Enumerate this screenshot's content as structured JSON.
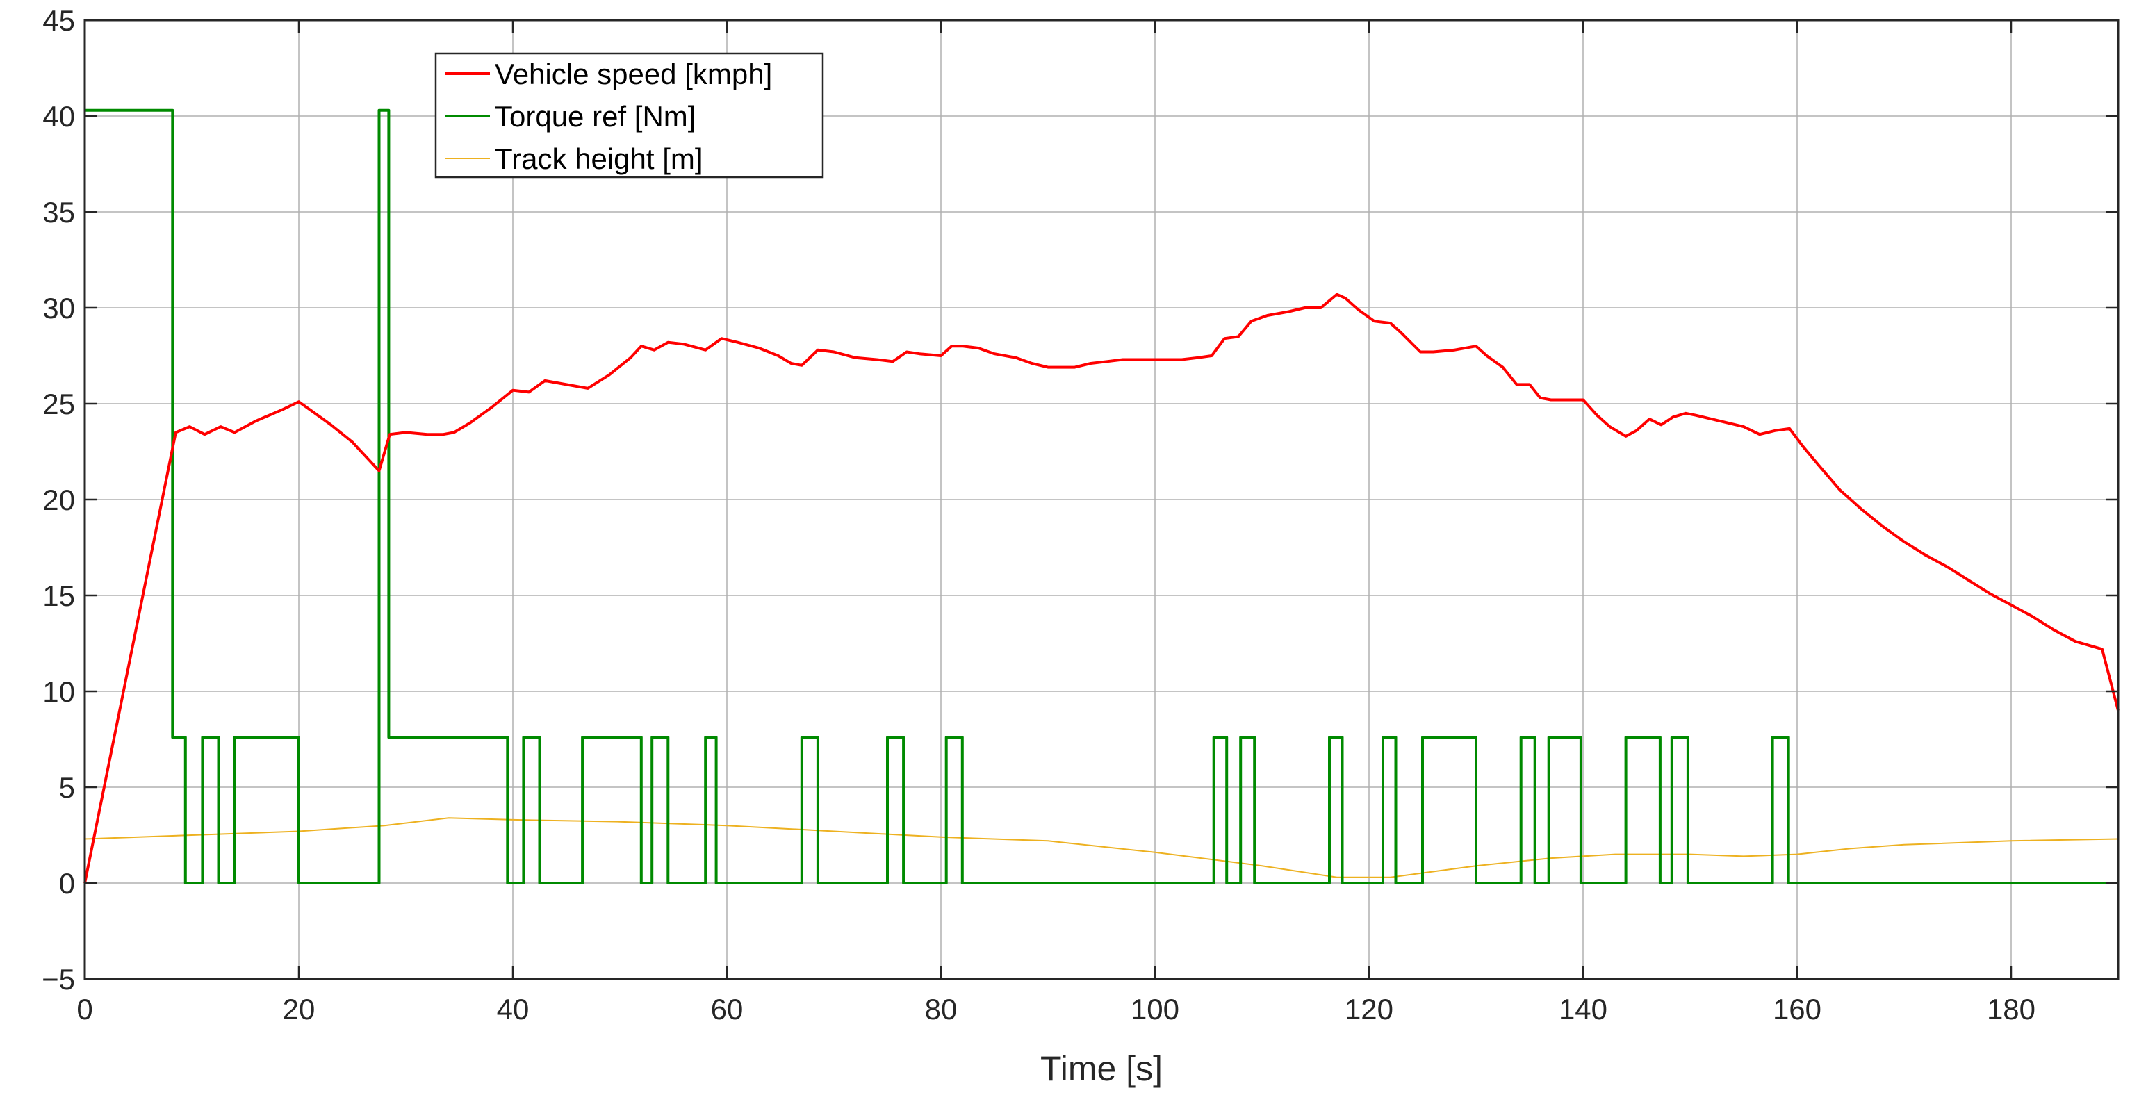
{
  "chart_data": {
    "type": "line",
    "xlabel": "Time [s]",
    "ylabel": "",
    "xlim": [
      0,
      190
    ],
    "ylim": [
      -5,
      45
    ],
    "xticks": [
      0,
      20,
      40,
      60,
      80,
      100,
      120,
      140,
      160,
      180
    ],
    "yticks": [
      -5,
      0,
      5,
      10,
      15,
      20,
      25,
      30,
      35,
      40,
      45
    ],
    "xtick_labels": [
      "0",
      "20",
      "40",
      "60",
      "80",
      "100",
      "120",
      "140",
      "160",
      "180"
    ],
    "ytick_labels": [
      "−5",
      "0",
      "5",
      "10",
      "15",
      "20",
      "25",
      "30",
      "35",
      "40",
      "45"
    ],
    "grid": true,
    "legend_position": "top-left",
    "series": [
      {
        "name": "Vehicle speed [kmph]",
        "color": "#ff0000",
        "x": [
          0,
          8.5,
          9.8,
          11.2,
          12.7,
          14,
          16,
          18.5,
          20,
          21.5,
          23,
          25,
          27.5,
          28.5,
          30,
          32,
          33.5,
          34.5,
          36,
          38,
          40,
          41.5,
          43,
          45,
          47,
          49,
          51,
          52,
          53.2,
          54.5,
          56,
          58,
          59.5,
          61,
          63,
          64.8,
          66,
          67,
          68.5,
          70,
          72,
          74,
          75.5,
          76.8,
          78,
          80,
          81,
          82,
          83.5,
          85,
          87,
          88.5,
          90,
          91,
          92.5,
          94,
          95.5,
          97,
          98.5,
          100,
          101,
          102.5,
          104,
          105.3,
          106.5,
          107.8,
          109,
          110.5,
          112.5,
          114,
          115.5,
          117,
          117.8,
          119,
          120.5,
          122,
          123,
          124.8,
          126,
          128,
          130,
          131,
          132.5,
          133.8,
          135,
          136,
          137,
          138.5,
          140,
          141.3,
          142.5,
          144,
          145,
          146.2,
          147.3,
          148.4,
          149.6,
          150.5,
          152,
          153.5,
          155,
          156.5,
          158,
          159.3,
          160.5,
          162,
          164,
          166,
          168,
          170,
          172,
          174,
          176,
          178,
          180,
          182,
          184,
          186,
          188.5,
          190
        ],
        "y": [
          0,
          23.5,
          23.8,
          23.4,
          23.8,
          23.5,
          24.1,
          24.7,
          25.1,
          24.5,
          23.9,
          23,
          21.5,
          23.4,
          23.5,
          23.4,
          23.4,
          23.5,
          24,
          24.8,
          25.7,
          25.6,
          26.2,
          26,
          25.8,
          26.5,
          27.4,
          28,
          27.8,
          28.2,
          28.1,
          27.8,
          28.4,
          28.2,
          27.9,
          27.5,
          27.1,
          27.0,
          27.8,
          27.7,
          27.4,
          27.3,
          27.2,
          27.7,
          27.6,
          27.5,
          28.0,
          28.0,
          27.9,
          27.6,
          27.4,
          27.1,
          26.9,
          26.9,
          26.9,
          27.1,
          27.2,
          27.3,
          27.3,
          27.3,
          27.3,
          27.3,
          27.4,
          27.5,
          28.4,
          28.5,
          29.3,
          29.6,
          29.8,
          30.0,
          30.0,
          30.7,
          30.5,
          29.9,
          29.3,
          29.2,
          28.7,
          27.7,
          27.7,
          27.8,
          28.0,
          27.5,
          26.9,
          26.0,
          26.0,
          25.3,
          25.2,
          25.2,
          25.2,
          24.4,
          23.8,
          23.3,
          23.6,
          24.2,
          23.9,
          24.3,
          24.5,
          24.4,
          24.2,
          24.0,
          23.8,
          23.4,
          23.6,
          23.7,
          22.8,
          21.8,
          20.5,
          19.5,
          18.6,
          17.8,
          17.1,
          16.5,
          15.8,
          15.1,
          14.5,
          13.9,
          13.2,
          12.6,
          12.2,
          9.0
        ]
      },
      {
        "name": "Torque ref [Nm]",
        "color": "#008a00",
        "x": [
          0,
          8.2,
          8.2,
          9.4,
          9.4,
          11,
          11,
          12.5,
          12.5,
          14,
          14,
          20,
          20,
          27.5,
          27.5,
          28.4,
          28.4,
          39.5,
          39.5,
          41,
          41,
          42.5,
          42.5,
          46.5,
          46.5,
          52,
          52,
          53,
          53,
          54.5,
          54.5,
          58,
          58,
          59,
          59,
          67,
          67,
          68.5,
          68.5,
          75,
          75,
          76.5,
          76.5,
          80.5,
          80.5,
          82,
          82,
          105.5,
          105.5,
          106.7,
          106.7,
          108,
          108,
          109.3,
          109.3,
          116.3,
          116.3,
          117.5,
          117.5,
          121.3,
          121.3,
          122.5,
          122.5,
          125,
          125,
          130,
          130,
          134.2,
          134.2,
          135.5,
          135.5,
          136.8,
          136.8,
          139.8,
          139.8,
          144,
          144,
          147.2,
          147.2,
          148.3,
          148.3,
          149.8,
          149.8,
          157.7,
          157.7,
          159.2,
          159.2,
          190
        ],
        "y": [
          40.3,
          40.3,
          7.6,
          7.6,
          0,
          0,
          7.6,
          7.6,
          0,
          0,
          7.6,
          7.6,
          0,
          0,
          40.3,
          40.3,
          7.6,
          7.6,
          0,
          0,
          7.6,
          7.6,
          0,
          0,
          7.6,
          7.6,
          0,
          0,
          7.6,
          7.6,
          0,
          0,
          7.6,
          7.6,
          0,
          0,
          7.6,
          7.6,
          0,
          0,
          7.6,
          7.6,
          0,
          0,
          7.6,
          7.6,
          0,
          0,
          7.6,
          7.6,
          0,
          0,
          7.6,
          7.6,
          0,
          0,
          7.6,
          7.6,
          0,
          0,
          7.6,
          7.6,
          0,
          0,
          7.6,
          7.6,
          0,
          0,
          7.6,
          7.6,
          0,
          0,
          7.6,
          7.6,
          0,
          0,
          7.6,
          7.6,
          0,
          0,
          7.6,
          7.6,
          0,
          0,
          7.6,
          7.6,
          0,
          0
        ]
      },
      {
        "name": "Track height [m]",
        "color": "#edb120",
        "x": [
          0,
          10,
          20,
          28,
          34,
          40,
          50,
          60,
          70,
          80,
          90,
          100,
          110,
          117,
          122,
          130,
          137,
          143,
          150,
          155,
          160,
          165,
          170,
          180,
          190
        ],
        "y": [
          2.3,
          2.5,
          2.7,
          3.0,
          3.4,
          3.3,
          3.2,
          3.0,
          2.7,
          2.4,
          2.2,
          1.6,
          0.9,
          0.3,
          0.3,
          0.9,
          1.3,
          1.5,
          1.5,
          1.4,
          1.5,
          1.8,
          2.0,
          2.2,
          2.3
        ]
      }
    ]
  }
}
